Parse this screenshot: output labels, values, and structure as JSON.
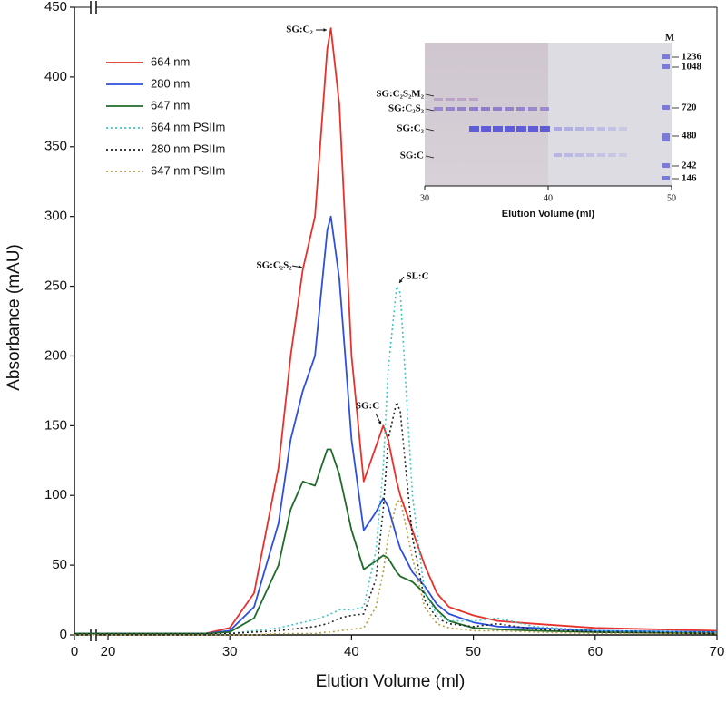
{
  "chart_data": {
    "type": "line",
    "xlabel": "Elution Volume (ml)",
    "ylabel": "Absorbance (mAU)",
    "x": [
      0,
      20,
      28,
      30,
      32,
      34,
      35,
      36,
      37,
      38,
      38.3,
      39,
      40,
      41,
      42,
      42.6,
      43,
      43.7,
      44,
      45,
      46,
      47,
      48,
      50,
      52,
      55,
      60,
      70
    ],
    "xlim": [
      0,
      70
    ],
    "x_break": [
      0,
      20
    ],
    "xticks": [
      0,
      20,
      30,
      40,
      50,
      60,
      70
    ],
    "ylim": [
      0,
      450
    ],
    "yticks": [
      0,
      50,
      100,
      150,
      200,
      250,
      300,
      350,
      400,
      450
    ],
    "legend": "upper left",
    "series": [
      {
        "name": "664 nm",
        "color": "#e8312a",
        "linestyle": "solid",
        "values": [
          1,
          1,
          1,
          5,
          30,
          120,
          200,
          262,
          300,
          420,
          435,
          380,
          200,
          110,
          135,
          150,
          140,
          110,
          100,
          75,
          50,
          30,
          20,
          14,
          10,
          8,
          5,
          3
        ]
      },
      {
        "name": "280 nm",
        "color": "#2d50e0",
        "linestyle": "solid",
        "values": [
          1,
          1,
          1,
          3,
          20,
          80,
          140,
          175,
          200,
          290,
          300,
          255,
          140,
          75,
          88,
          98,
          92,
          70,
          62,
          45,
          35,
          22,
          15,
          9,
          6,
          5,
          3,
          2
        ]
      },
      {
        "name": "647 nm",
        "color": "#1e6b2a",
        "linestyle": "solid",
        "values": [
          1,
          1,
          1,
          2,
          12,
          50,
          90,
          110,
          107,
          133,
          133,
          115,
          75,
          47,
          53,
          57,
          55,
          45,
          42,
          38,
          30,
          18,
          10,
          5,
          4,
          3,
          2,
          1
        ]
      },
      {
        "name": "664 nm PSIIm",
        "color": "#3cc6c6",
        "linestyle": "dotted",
        "values": [
          1,
          1,
          1,
          1,
          3,
          5,
          7,
          9,
          11,
          14,
          15,
          18,
          18,
          20,
          60,
          120,
          190,
          250,
          245,
          100,
          30,
          15,
          10,
          10,
          12,
          6,
          3,
          2
        ]
      },
      {
        "name": "280 nm PSIIm",
        "color": "#222222",
        "linestyle": "dotted",
        "values": [
          1,
          1,
          1,
          1,
          2,
          3,
          4,
          5,
          6,
          8,
          9,
          12,
          14,
          15,
          40,
          90,
          140,
          167,
          160,
          70,
          25,
          12,
          8,
          6,
          8,
          4,
          2,
          1
        ]
      },
      {
        "name": "647 nm PSIIm",
        "color": "#b8a040",
        "linestyle": "dotted",
        "values": [
          0,
          0,
          0,
          0,
          0,
          1,
          1,
          1,
          1,
          2,
          2,
          3,
          4,
          5,
          20,
          45,
          70,
          95,
          97,
          55,
          20,
          8,
          5,
          3,
          3,
          2,
          1,
          1
        ]
      }
    ],
    "annotations": [
      "SG:C₂",
      "SG:C₂S₂",
      "SL:C",
      "SG:C"
    ],
    "inset": {
      "xlabel": "Elution Volume (ml)",
      "xticks": [
        30,
        40,
        50
      ],
      "band_labels": [
        "SG:C₂S₂M₂",
        "SG:C₂S₂",
        "SG:C₂",
        "SG:C"
      ],
      "marker_title": "M",
      "markers": [
        1236,
        1048,
        720,
        480,
        242,
        146
      ]
    }
  }
}
